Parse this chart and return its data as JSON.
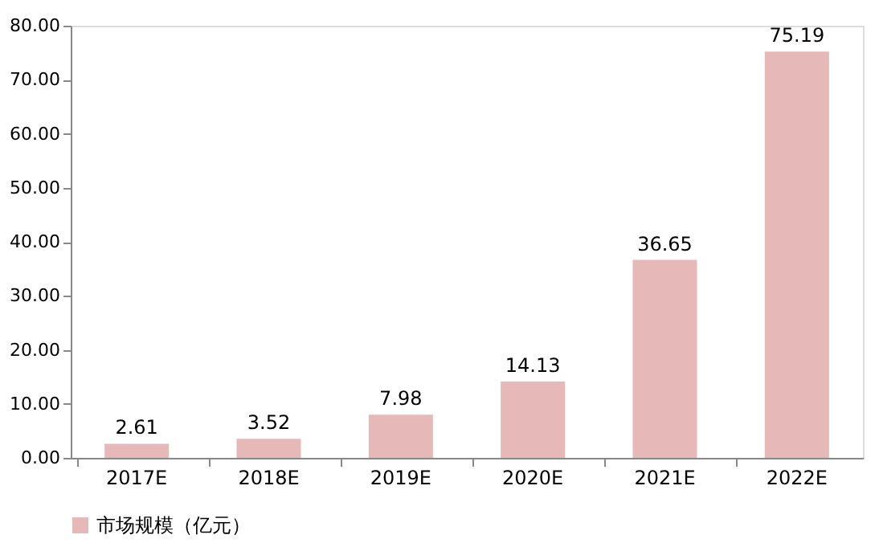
{
  "chart_data": {
    "type": "bar",
    "categories": [
      "2017E",
      "2018E",
      "2019E",
      "2020E",
      "2021E",
      "2022E"
    ],
    "series": [
      {
        "name": "市场规模（亿元）",
        "color": "#e6b8b7",
        "values": [
          2.61,
          3.52,
          7.98,
          14.13,
          36.65,
          75.19
        ]
      }
    ],
    "ylim": [
      0,
      80
    ],
    "yticks": [
      {
        "value": 0,
        "label": "0.00"
      },
      {
        "value": 10,
        "label": "10.00"
      },
      {
        "value": 20,
        "label": "20.00"
      },
      {
        "value": 30,
        "label": "30.00"
      },
      {
        "value": 40,
        "label": "40.00"
      },
      {
        "value": 50,
        "label": "50.00"
      },
      {
        "value": 60,
        "label": "60.00"
      },
      {
        "value": 70,
        "label": "70.00"
      },
      {
        "value": 80,
        "label": "80.00"
      }
    ],
    "data_labels": true,
    "grid": false,
    "legend": "bottom"
  }
}
